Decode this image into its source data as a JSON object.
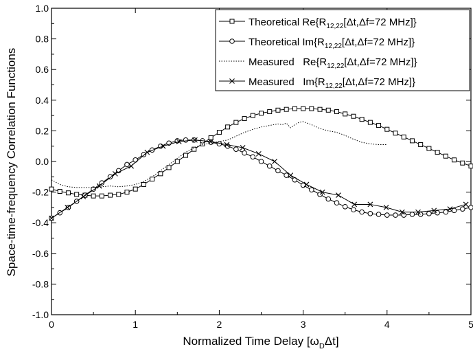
{
  "chart_data": {
    "type": "line",
    "xlabel_main": "Normalized Time Delay [ω",
    "xlabel_sub": "D",
    "xlabel_tail": "Δt]",
    "ylabel": "Space-time-frequency Correlation Functions",
    "xlim": [
      0,
      5
    ],
    "ylim": [
      -1.0,
      1.0
    ],
    "xticks": [
      0,
      1,
      2,
      3,
      4,
      5
    ],
    "xtick_labels": [
      "0",
      "1",
      "2",
      "3",
      "4",
      "5"
    ],
    "yticks": [
      -1.0,
      -0.8,
      -0.6,
      -0.4,
      -0.2,
      0.0,
      0.2,
      0.4,
      0.6,
      0.8,
      1.0
    ],
    "ytick_labels": [
      "-1.0",
      "-0.8",
      "-0.6",
      "-0.4",
      "-0.2",
      "0.0",
      "0.2",
      "0.4",
      "0.6",
      "0.8",
      "1.0"
    ],
    "grid": false,
    "legend_position": "top-right",
    "series": [
      {
        "name": "Theoretical Re{R12,22[Δt,Δf=72 MHz]}",
        "legend_prefix": "Theoretical Re{R",
        "legend_sub": "12,22",
        "legend_suffix": "[Δt,Δf=72 MHz]}",
        "style": "solid",
        "marker": "square",
        "x": [
          0.0,
          0.1,
          0.2,
          0.3,
          0.4,
          0.5,
          0.6,
          0.7,
          0.8,
          0.9,
          1.0,
          1.1,
          1.2,
          1.3,
          1.4,
          1.5,
          1.6,
          1.7,
          1.8,
          1.9,
          2.0,
          2.1,
          2.2,
          2.3,
          2.4,
          2.5,
          2.6,
          2.7,
          2.8,
          2.9,
          3.0,
          3.1,
          3.2,
          3.3,
          3.4,
          3.5,
          3.6,
          3.7,
          3.8,
          3.9,
          4.0,
          4.1,
          4.2,
          4.3,
          4.4,
          4.5,
          4.6,
          4.7,
          4.8,
          4.9,
          5.0
        ],
        "y": [
          -0.18,
          -0.195,
          -0.205,
          -0.215,
          -0.22,
          -0.225,
          -0.225,
          -0.22,
          -0.215,
          -0.2,
          -0.18,
          -0.15,
          -0.115,
          -0.08,
          -0.04,
          0.0,
          0.04,
          0.08,
          0.115,
          0.155,
          0.19,
          0.225,
          0.255,
          0.28,
          0.3,
          0.315,
          0.325,
          0.335,
          0.34,
          0.345,
          0.345,
          0.345,
          0.34,
          0.335,
          0.325,
          0.31,
          0.295,
          0.275,
          0.255,
          0.235,
          0.21,
          0.185,
          0.16,
          0.135,
          0.11,
          0.085,
          0.06,
          0.035,
          0.01,
          -0.01,
          -0.03
        ]
      },
      {
        "name": "Theoretical Im{R12,22[Δt,Δf=72 MHz]}",
        "legend_prefix": "Theoretical Im{R",
        "legend_sub": "12,22",
        "legend_suffix": "[Δt,Δf=72 MHz]}",
        "style": "solid",
        "marker": "circle",
        "x": [
          0.0,
          0.1,
          0.2,
          0.3,
          0.4,
          0.5,
          0.6,
          0.7,
          0.8,
          0.9,
          1.0,
          1.1,
          1.2,
          1.3,
          1.4,
          1.5,
          1.6,
          1.7,
          1.8,
          1.9,
          2.0,
          2.1,
          2.2,
          2.3,
          2.4,
          2.5,
          2.6,
          2.7,
          2.8,
          2.9,
          3.0,
          3.1,
          3.2,
          3.3,
          3.4,
          3.5,
          3.6,
          3.7,
          3.8,
          3.9,
          4.0,
          4.1,
          4.2,
          4.3,
          4.4,
          4.5,
          4.6,
          4.7,
          4.8,
          4.9,
          5.0
        ],
        "y": [
          -0.37,
          -0.335,
          -0.3,
          -0.26,
          -0.22,
          -0.18,
          -0.14,
          -0.1,
          -0.06,
          -0.02,
          0.01,
          0.045,
          0.075,
          0.1,
          0.12,
          0.135,
          0.14,
          0.14,
          0.135,
          0.125,
          0.115,
          0.1,
          0.08,
          0.055,
          0.03,
          0.0,
          -0.03,
          -0.06,
          -0.09,
          -0.12,
          -0.155,
          -0.185,
          -0.215,
          -0.245,
          -0.27,
          -0.295,
          -0.315,
          -0.33,
          -0.34,
          -0.345,
          -0.35,
          -0.35,
          -0.35,
          -0.345,
          -0.345,
          -0.34,
          -0.335,
          -0.33,
          -0.32,
          -0.31,
          -0.3
        ]
      },
      {
        "name": "Measured Re{R12,22[Δt,Δf=72 MHz]}",
        "legend_prefix": "Measured   Re{R",
        "legend_sub": "12,22",
        "legend_suffix": "[Δt,Δf=72 MHz]}",
        "style": "dotted",
        "marker": "none",
        "x": [
          0.0,
          0.1,
          0.2,
          0.3,
          0.4,
          0.5,
          0.6,
          0.7,
          0.8,
          0.9,
          1.0,
          1.1,
          1.2,
          1.3,
          1.4,
          1.5,
          1.6,
          1.7,
          1.8,
          1.9,
          2.0,
          2.1,
          2.2,
          2.3,
          2.4,
          2.5,
          2.6,
          2.7,
          2.75,
          2.8,
          2.85,
          2.9,
          2.95,
          3.0,
          3.1,
          3.2,
          3.3,
          3.4,
          3.5,
          3.6,
          3.7,
          3.8,
          3.9,
          4.0
        ],
        "y": [
          -0.12,
          -0.15,
          -0.165,
          -0.17,
          -0.17,
          -0.17,
          -0.165,
          -0.16,
          -0.165,
          -0.16,
          -0.15,
          -0.13,
          -0.1,
          -0.06,
          -0.02,
          0.02,
          0.06,
          0.09,
          0.11,
          0.12,
          0.13,
          0.14,
          0.165,
          0.19,
          0.21,
          0.225,
          0.235,
          0.245,
          0.24,
          0.25,
          0.22,
          0.24,
          0.255,
          0.26,
          0.24,
          0.215,
          0.2,
          0.19,
          0.17,
          0.145,
          0.125,
          0.115,
          0.11,
          0.11
        ]
      },
      {
        "name": "Measured Im{R12,22[Δt,Δf=72 MHz]}",
        "legend_prefix": "Measured   Im{R",
        "legend_sub": "12,22",
        "legend_suffix": "[Δt,Δf=72 MHz]}",
        "style": "solid",
        "marker": "x",
        "x": [
          0.0,
          0.19,
          0.38,
          0.57,
          0.76,
          0.95,
          1.14,
          1.33,
          1.52,
          1.71,
          1.9,
          2.09,
          2.28,
          2.47,
          2.66,
          2.85,
          3.04,
          3.23,
          3.42,
          3.61,
          3.8,
          3.99,
          4.18,
          4.37,
          4.56,
          4.75,
          4.94
        ],
        "y": [
          -0.37,
          -0.3,
          -0.23,
          -0.16,
          -0.08,
          -0.03,
          0.06,
          0.1,
          0.13,
          0.14,
          0.13,
          0.11,
          0.09,
          0.05,
          0.0,
          -0.09,
          -0.15,
          -0.2,
          -0.22,
          -0.28,
          -0.28,
          -0.3,
          -0.33,
          -0.33,
          -0.32,
          -0.31,
          -0.28
        ]
      }
    ]
  }
}
